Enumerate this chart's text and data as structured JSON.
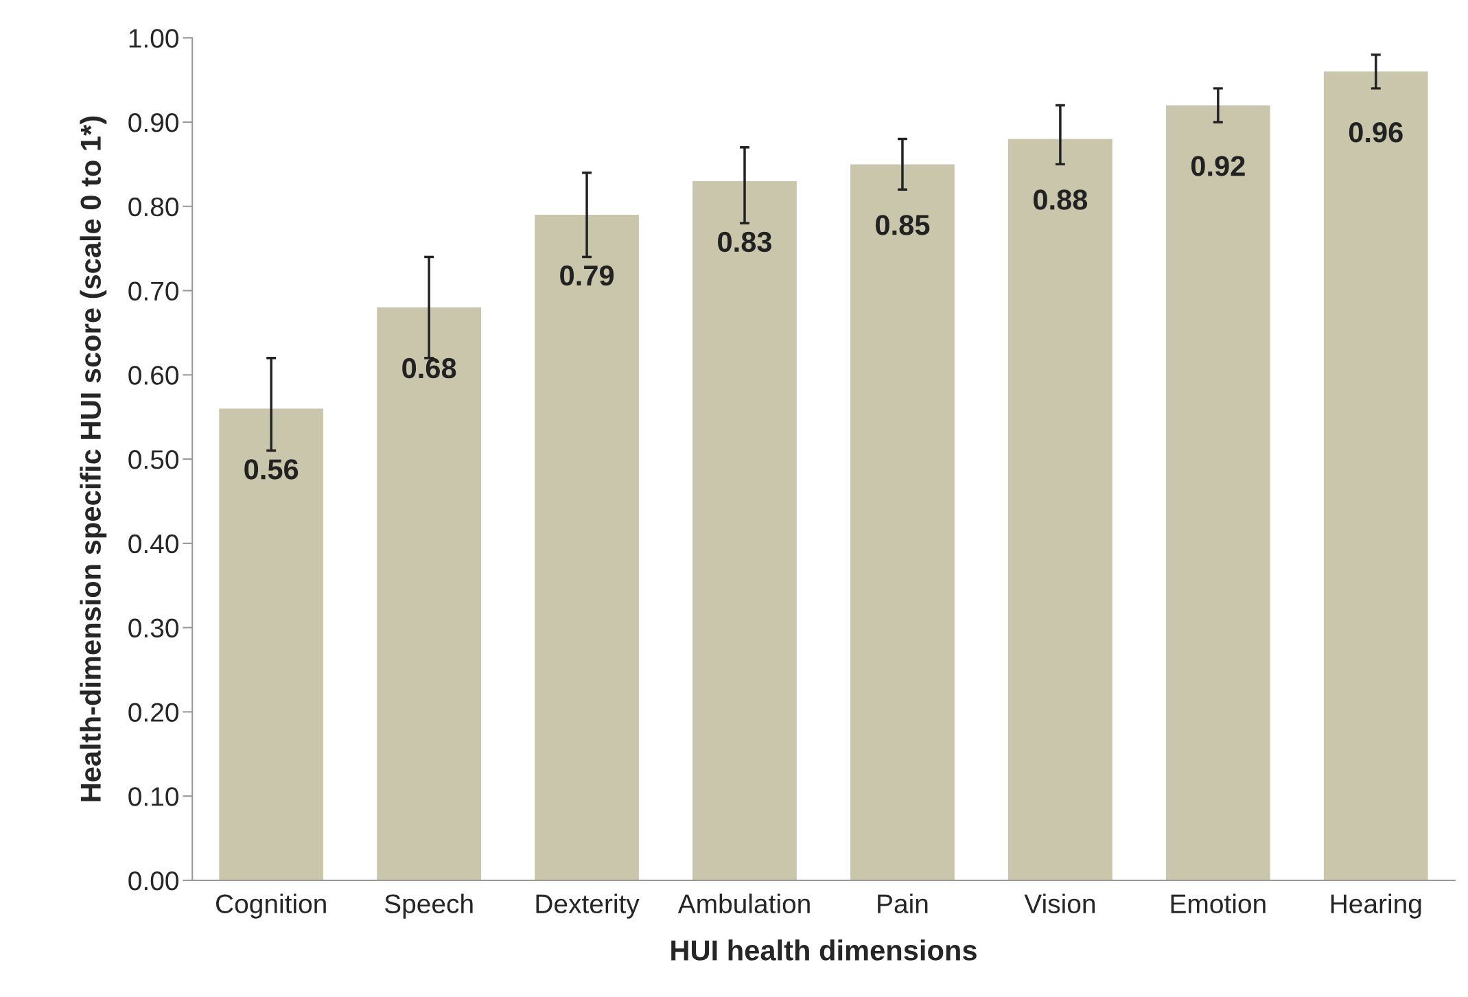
{
  "chart_data": {
    "type": "bar",
    "xlabel": "HUI health dimensions",
    "ylabel": "Health-dimension specific HUI score (scale 0 to 1*)",
    "categories": [
      "Cognition",
      "Speech",
      "Dexterity",
      "Ambulation",
      "Pain",
      "Vision",
      "Emotion",
      "Hearing"
    ],
    "values": [
      0.56,
      0.68,
      0.79,
      0.83,
      0.85,
      0.88,
      0.92,
      0.96
    ],
    "color": "#c9c6ab",
    "errors": [
      [
        0.51,
        0.62
      ],
      [
        0.62,
        0.74
      ],
      [
        0.74,
        0.84
      ],
      [
        0.78,
        0.87
      ],
      [
        0.82,
        0.88
      ],
      [
        0.85,
        0.92
      ],
      [
        0.9,
        0.94
      ],
      [
        0.94,
        0.98
      ]
    ],
    "data_labels": true,
    "ylim": [
      0,
      1
    ],
    "yticks": [
      {
        "value": 0,
        "label": "0.00"
      },
      {
        "value": 0.1,
        "label": "0.10"
      },
      {
        "value": 0.2,
        "label": "0.20"
      },
      {
        "value": 0.3,
        "label": "0.30"
      },
      {
        "value": 0.4,
        "label": "0.40"
      },
      {
        "value": 0.5,
        "label": "0.50"
      },
      {
        "value": 0.6,
        "label": "0.60"
      },
      {
        "value": 0.7,
        "label": "0.70"
      },
      {
        "value": 0.8,
        "label": "0.80"
      },
      {
        "value": 0.9,
        "label": "0.90"
      },
      {
        "value": 1,
        "label": "1.00"
      }
    ],
    "grid": false,
    "legend": false
  }
}
